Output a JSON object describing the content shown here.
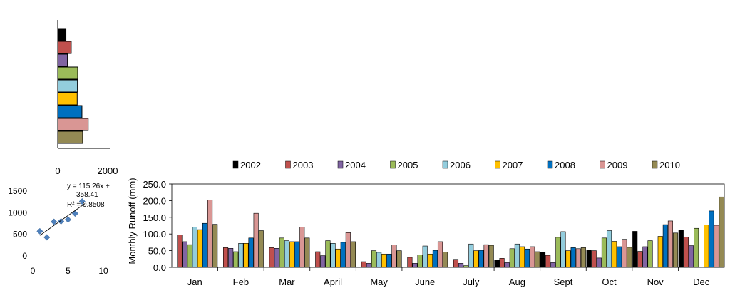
{
  "chart_data": [
    {
      "type": "bar",
      "orientation": "horizontal",
      "categories": [
        "2002",
        "2003",
        "2004",
        "2005",
        "2006",
        "2007",
        "2008",
        "2009",
        "2010"
      ],
      "values": [
        330,
        540,
        390,
        800,
        790,
        780,
        970,
        1220,
        1000
      ],
      "xlim": [
        0,
        2000
      ],
      "xticks": [
        "0",
        "2000"
      ],
      "colors": [
        "#000000",
        "#c0504d",
        "#8064a2",
        "#9bbb59",
        "#93cddd",
        "#ffc000",
        "#0070c0",
        "#d99694",
        "#948a54"
      ]
    },
    {
      "type": "scatter",
      "x": [
        1,
        2,
        3,
        4,
        5,
        6,
        7
      ],
      "y": [
        570,
        430,
        790,
        800,
        840,
        980,
        1260
      ],
      "xlim": [
        0,
        10
      ],
      "ylim": [
        0,
        1500
      ],
      "xticks": [
        "0",
        "5",
        "10"
      ],
      "yticks": [
        "0",
        "500",
        "1000",
        "1500"
      ],
      "trendline": {
        "slope": 115.26,
        "intercept": 358.41
      },
      "equation_line1": "y = 115.26x +",
      "equation_line2": "358.41",
      "r2_label": "R² = 0.8508",
      "marker_color": "#4f81bd"
    },
    {
      "type": "bar",
      "ylabel": "Monthly  Runoff (mm)",
      "ylim": [
        0,
        250
      ],
      "yticks": [
        "0.0",
        "50.0",
        "100.0",
        "150.0",
        "200.0",
        "250.0"
      ],
      "legend_position": "top",
      "categories": [
        "Jan",
        "Feb",
        "Mar",
        "April",
        "May",
        "June",
        "July",
        "Aug",
        "Sept",
        "Oct",
        "Nov",
        "Dec"
      ],
      "series": [
        {
          "name": "2002",
          "color": "#000000",
          "values": [
            0,
            0,
            0,
            0,
            0,
            0,
            0,
            22,
            45,
            52,
            108,
            112
          ]
        },
        {
          "name": "2003",
          "color": "#c0504d",
          "values": [
            97,
            59,
            59,
            47,
            17,
            30,
            24,
            27,
            36,
            50,
            48,
            91
          ]
        },
        {
          "name": "2004",
          "color": "#8064a2",
          "values": [
            77,
            57,
            57,
            35,
            12,
            12,
            12,
            14,
            14,
            28,
            62,
            65
          ]
        },
        {
          "name": "2005",
          "color": "#9bbb59",
          "values": [
            68,
            47,
            88,
            80,
            50,
            37,
            5,
            56,
            90,
            88,
            80,
            117
          ]
        },
        {
          "name": "2006",
          "color": "#93cddd",
          "values": [
            121,
            72,
            80,
            72,
            45,
            64,
            70,
            70,
            107,
            110,
            0,
            0
          ]
        },
        {
          "name": "2007",
          "color": "#ffc000",
          "values": [
            113,
            72,
            77,
            55,
            40,
            40,
            50,
            62,
            50,
            78,
            93,
            127
          ]
        },
        {
          "name": "2008",
          "color": "#0070c0",
          "values": [
            132,
            88,
            77,
            75,
            40,
            51,
            51,
            55,
            59,
            62,
            128,
            169
          ]
        },
        {
          "name": "2009",
          "color": "#d99694",
          "values": [
            202,
            162,
            121,
            104,
            67,
            77,
            68,
            62,
            56,
            84,
            139,
            126
          ]
        },
        {
          "name": "2010",
          "color": "#948a54",
          "values": [
            129,
            110,
            88,
            77,
            50,
            46,
            66,
            47,
            59,
            60,
            103,
            211
          ]
        }
      ]
    }
  ]
}
